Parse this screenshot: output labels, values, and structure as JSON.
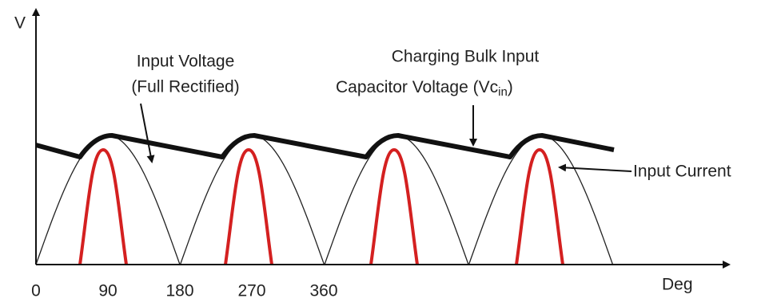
{
  "axes": {
    "y_label": "V",
    "x_label": "Deg",
    "x_ticks": [
      0,
      90,
      180,
      270,
      360
    ]
  },
  "annotations": {
    "input_voltage": [
      "Input Voltage",
      "(Full Rectified)"
    ],
    "capacitor_voltage": {
      "line1": "Charging Bulk Input",
      "line2": [
        "Capacitor Voltage (Vc",
        "in",
        ")"
      ]
    },
    "input_current": "Input Current"
  }
}
